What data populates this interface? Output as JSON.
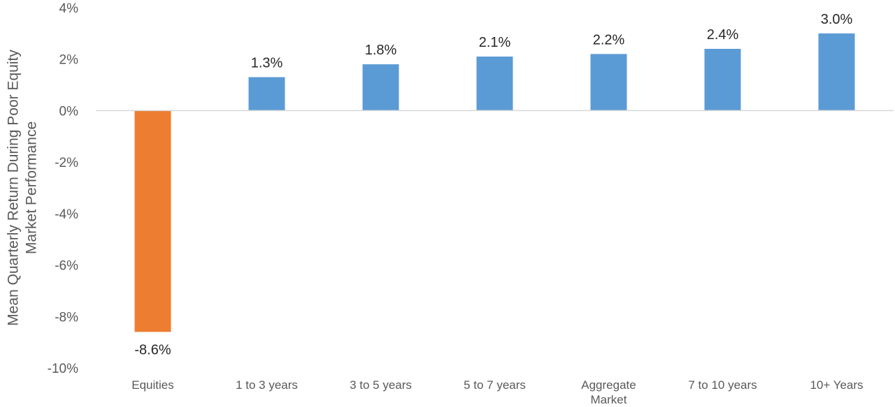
{
  "chart_data": {
    "type": "bar",
    "title": "",
    "xlabel": "",
    "ylabel_lines": [
      "Mean Quarterly Return During Poor Equity",
      "Market Performance"
    ],
    "categories": [
      [
        "Equities"
      ],
      [
        "1 to 3 years"
      ],
      [
        "3 to 5 years"
      ],
      [
        "5 to 7 years"
      ],
      [
        "Aggregate",
        "Market"
      ],
      [
        "7 to 10 years"
      ],
      [
        "10+ Years"
      ]
    ],
    "values": [
      -8.6,
      1.3,
      1.8,
      2.1,
      2.2,
      2.4,
      3.0
    ],
    "data_labels": [
      "-8.6%",
      "1.3%",
      "1.8%",
      "2.1%",
      "2.2%",
      "2.4%",
      "3.0%"
    ],
    "bar_colors": [
      "#ED7D31",
      "#5B9BD5",
      "#5B9BD5",
      "#5B9BD5",
      "#5B9BD5",
      "#5B9BD5",
      "#5B9BD5"
    ],
    "ylim": [
      -10,
      4
    ],
    "yticks": [
      4,
      2,
      0,
      -2,
      -4,
      -6,
      -8,
      -10
    ],
    "ytick_labels": [
      "4%",
      "2%",
      "0%",
      "-2%",
      "-4%",
      "-6%",
      "-8%",
      "-10%"
    ],
    "grid": false,
    "legend": "none",
    "colors": {
      "axis_line": "#D9D9D9",
      "text": "#595959",
      "data_text": "#262626"
    }
  }
}
